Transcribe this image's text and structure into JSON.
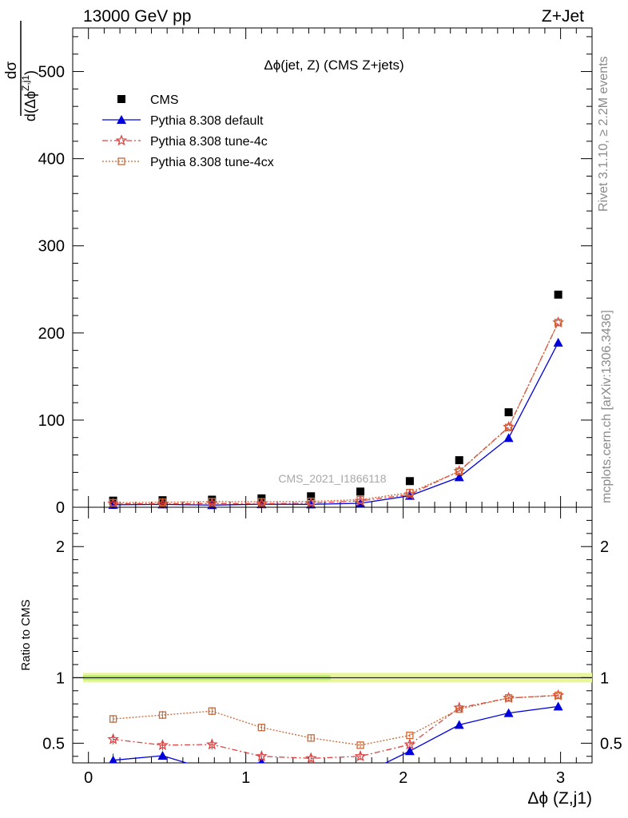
{
  "header": {
    "energy_label": "13000 GeV pp",
    "process_label": "Z+Jet"
  },
  "side_labels": {
    "rivet": "Rivet 3.1.10, ≥ 2.2M events",
    "mcplots": "mcplots.cern.ch [arXiv:1306.3436]"
  },
  "watermark": "CMS_2021_I1866118",
  "chart_data": [
    {
      "type": "scatter",
      "title": "Δϕ(jet, Z) (CMS Z+jets)",
      "ylabel_numerator": "dσ",
      "ylabel_denominator": "d(Δϕ",
      "ylabel_superscript": "Z,j1",
      "ylabel_close": ")",
      "xlim": [
        -0.1,
        3.2
      ],
      "ylim": [
        0,
        550
      ],
      "y_ticks": [
        0,
        100,
        200,
        300,
        400,
        500
      ],
      "x": [
        0.157,
        0.471,
        0.785,
        1.1,
        1.414,
        1.728,
        2.042,
        2.356,
        2.67,
        2.985
      ],
      "legend_position": "top-left",
      "series": [
        {
          "name": "CMS",
          "style": "data",
          "color": "#000000",
          "values": [
            7.6,
            8.1,
            8.7,
            10.2,
            12.6,
            18.0,
            30.0,
            54.0,
            109.0,
            244.0
          ]
        },
        {
          "name": "Pythia 8.308 default",
          "style": "triangle-solid",
          "color": "#0000dd",
          "values": [
            2.8,
            3.3,
            2.5,
            3.6,
            3.3,
            4.6,
            13.2,
            34.5,
            79.5,
            189.0
          ]
        },
        {
          "name": "Pythia 8.308 tune-4c",
          "style": "star-dashdot",
          "color": "#dd4444",
          "values": [
            4.0,
            3.9,
            4.3,
            4.1,
            4.8,
            7.2,
            14.7,
            41.5,
            92.0,
            212.0
          ]
        },
        {
          "name": "Pythia 8.308 tune-4cx",
          "style": "square-dotted",
          "color": "#cc6633",
          "values": [
            5.2,
            5.8,
            6.5,
            6.3,
            6.8,
            8.7,
            16.8,
            41.2,
            91.5,
            212.0
          ]
        }
      ]
    },
    {
      "type": "line",
      "ylabel": "Ratio to CMS",
      "xlabel": "Δϕ (Z,j1)",
      "xlim": [
        -0.1,
        3.2
      ],
      "ylim": [
        0.35,
        2.3
      ],
      "x_ticks": [
        0,
        1,
        2,
        3
      ],
      "y_ticks": [
        0.5,
        1,
        2
      ],
      "x": [
        0.157,
        0.471,
        0.785,
        1.1,
        1.414,
        1.728,
        2.042,
        2.356,
        2.67,
        2.985
      ],
      "reference": 1,
      "series": [
        {
          "name": "Pythia 8.308 default",
          "style": "triangle-solid",
          "color": "#0000dd",
          "values": [
            0.37,
            0.405,
            0.29,
            0.355,
            0.26,
            0.255,
            0.44,
            0.64,
            0.73,
            0.78
          ],
          "errors": [
            0.05,
            0.025,
            0.02,
            0.02,
            0.02,
            0.02,
            0.015,
            0.01,
            0.01,
            0.008
          ]
        },
        {
          "name": "Pythia 8.308 tune-4c",
          "style": "star-dashdot",
          "color": "#dd4444",
          "values": [
            0.53,
            0.485,
            0.49,
            0.4,
            0.385,
            0.4,
            0.49,
            0.77,
            0.845,
            0.865
          ],
          "errors": [
            0.04,
            0.04,
            0.04,
            0.03,
            0.03,
            0.03,
            0.02,
            0.015,
            0.01,
            0.01
          ]
        },
        {
          "name": "Pythia 8.308 tune-4cx",
          "style": "square-dotted",
          "color": "#cc6633",
          "values": [
            0.685,
            0.715,
            0.745,
            0.62,
            0.54,
            0.485,
            0.56,
            0.76,
            0.845,
            0.865
          ],
          "errors": [
            0.03,
            0.03,
            0.03,
            0.025,
            0.025,
            0.02,
            0.015,
            0.01,
            0.01,
            0.01
          ]
        }
      ]
    }
  ]
}
